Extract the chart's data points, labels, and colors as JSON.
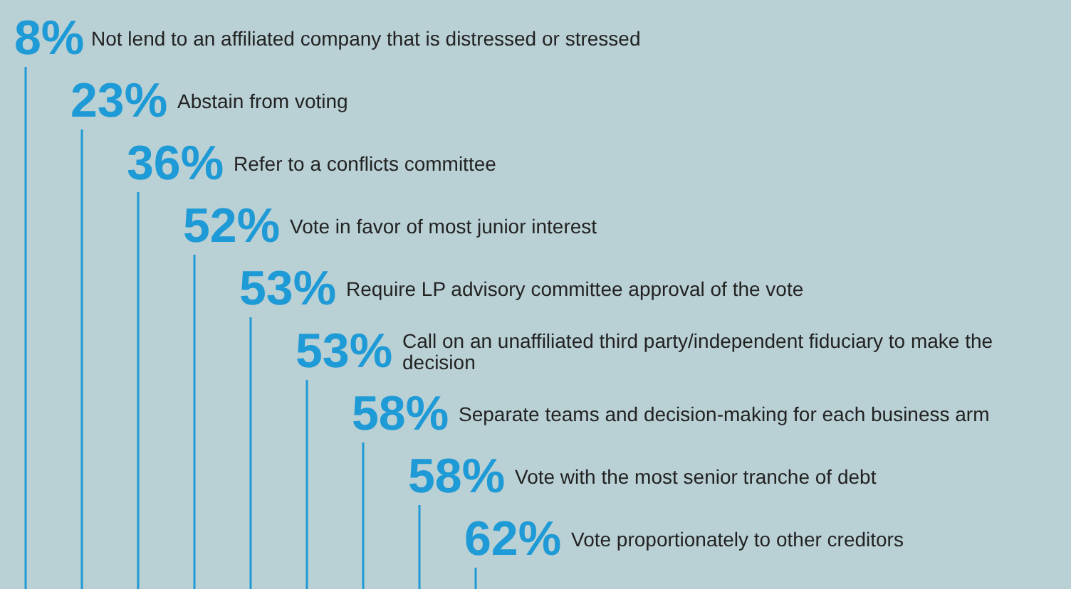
{
  "chart_data": {
    "type": "other",
    "color": "#1e9ad6",
    "categories": [
      "Not lend to an affiliated company that is distressed or stressed",
      "Abstain from voting",
      "Refer to a conflicts committee",
      "Vote in favor of most junior interest",
      "Require LP advisory committee approval of the vote",
      "Call on an unaffiliated third party/independent fiduciary to make the decision",
      "Separate teams and decision-making for each business arm",
      "Vote with the most senior tranche of debt",
      "Vote proportionately to other creditors"
    ],
    "values": [
      8,
      23,
      36,
      52,
      53,
      53,
      58,
      58,
      62
    ],
    "value_labels": [
      "8%",
      "23%",
      "36%",
      "52%",
      "53%",
      "53%",
      "58%",
      "58%",
      "62%"
    ]
  }
}
